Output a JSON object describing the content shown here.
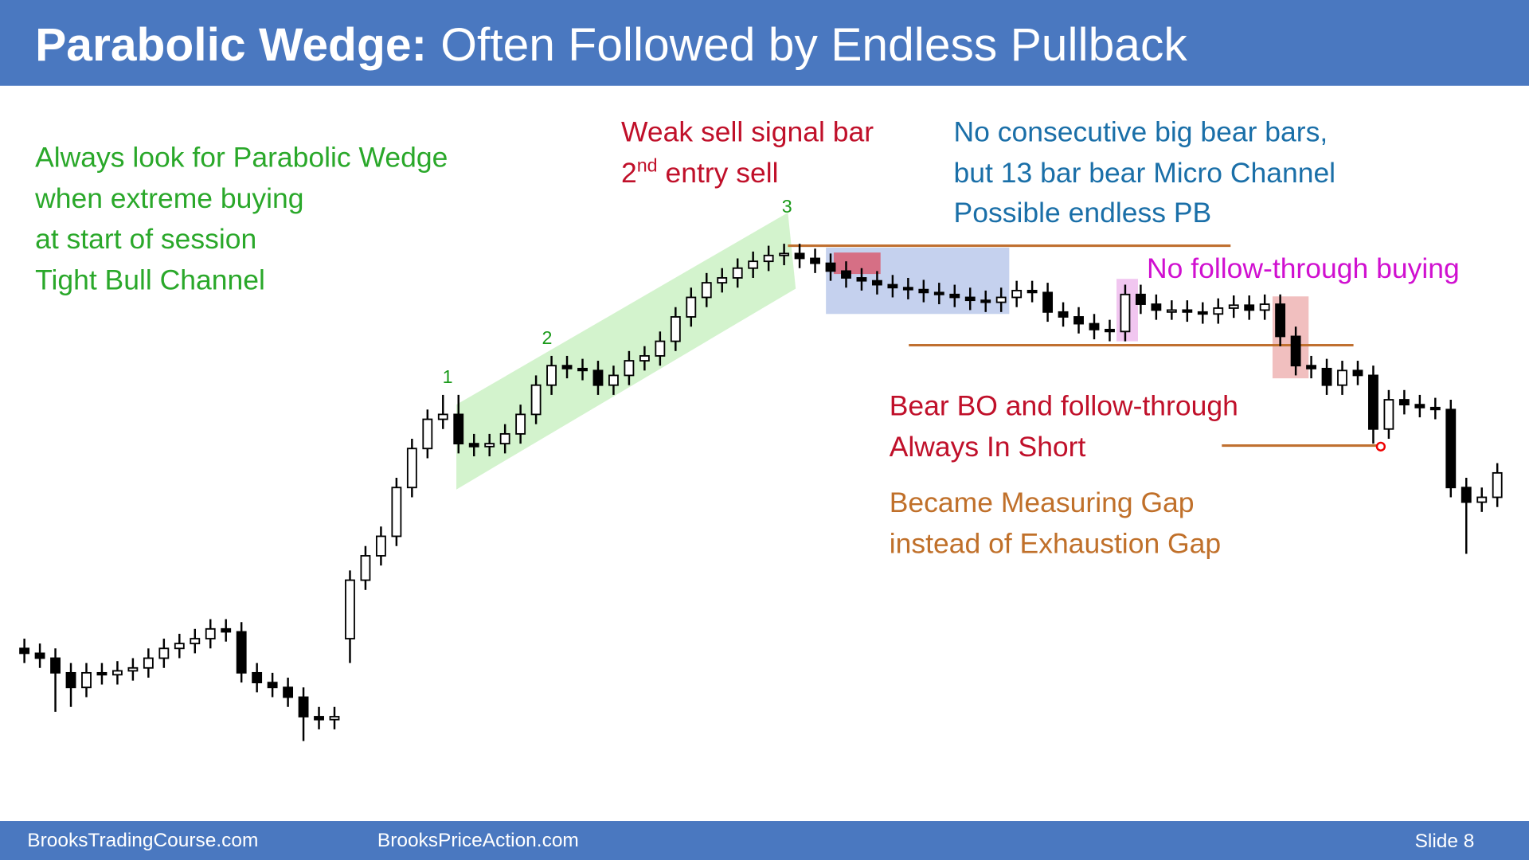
{
  "header": {
    "title_bold": "Parabolic Wedge:",
    "title_rest": "Often Followed by Endless Pullback"
  },
  "footer": {
    "left": "BrooksTradingCourse.com",
    "middle": "BrooksPriceAction.com",
    "slide": "Slide  8"
  },
  "annotations": {
    "green": [
      "Always look for Parabolic Wedge",
      "when extreme buying",
      "at start of session",
      "Tight Bull Channel"
    ],
    "red_top": {
      "line1": "Weak sell signal bar",
      "num": "2",
      "sup": "nd",
      "rest": " entry sell"
    },
    "blue": [
      "No consecutive big bear bars,",
      "but 13 bar bear Micro Channel",
      "Possible endless PB"
    ],
    "magenta": "No follow-through buying",
    "red_mid": [
      "Bear BO and follow-through",
      "Always In Short"
    ],
    "orange": [
      "Became Measuring Gap",
      "instead of Exhaustion Gap"
    ],
    "wedge_points": [
      "1",
      "2",
      "3"
    ]
  },
  "chart_data": {
    "type": "candlestick",
    "ylim": [
      0,
      650
    ],
    "open": [
      135,
      130,
      125,
      110,
      95,
      110,
      108,
      112,
      115,
      125,
      135,
      140,
      145,
      155,
      152,
      110,
      100,
      95,
      85,
      65,
      62,
      145,
      205,
      230,
      250,
      300,
      340,
      370,
      375,
      345,
      342,
      345,
      355,
      375,
      405,
      425,
      422,
      420,
      405,
      415,
      430,
      435,
      450,
      475,
      495,
      510,
      515,
      525,
      532,
      538,
      540,
      535,
      530,
      522,
      515,
      512,
      508,
      505,
      503,
      500,
      498,
      495,
      492,
      490,
      495,
      502,
      500,
      480,
      475,
      468,
      462,
      460,
      498,
      488,
      482,
      482,
      480,
      478,
      484,
      487,
      482,
      488,
      455,
      425,
      422,
      405,
      420,
      415,
      360,
      390,
      385,
      382,
      380,
      300,
      285,
      290
    ],
    "high": [
      145,
      140,
      135,
      120,
      120,
      120,
      122,
      125,
      135,
      145,
      150,
      155,
      165,
      165,
      162,
      120,
      110,
      105,
      95,
      75,
      75,
      215,
      240,
      260,
      310,
      350,
      380,
      395,
      395,
      355,
      355,
      365,
      385,
      415,
      435,
      435,
      432,
      430,
      425,
      440,
      445,
      460,
      485,
      505,
      520,
      525,
      535,
      542,
      548,
      550,
      550,
      545,
      540,
      532,
      525,
      522,
      518,
      515,
      513,
      510,
      508,
      505,
      502,
      505,
      512,
      512,
      510,
      490,
      485,
      478,
      472,
      508,
      508,
      498,
      492,
      492,
      490,
      494,
      497,
      497,
      498,
      498,
      465,
      435,
      432,
      430,
      430,
      425,
      400,
      400,
      395,
      392,
      390,
      310,
      300,
      325
    ],
    "low": [
      120,
      115,
      70,
      75,
      85,
      98,
      98,
      102,
      105,
      115,
      125,
      130,
      135,
      142,
      100,
      90,
      85,
      75,
      40,
      52,
      52,
      120,
      195,
      220,
      240,
      290,
      330,
      360,
      335,
      332,
      332,
      335,
      345,
      365,
      395,
      412,
      410,
      395,
      395,
      405,
      420,
      425,
      440,
      465,
      485,
      500,
      505,
      515,
      522,
      528,
      525,
      520,
      512,
      505,
      502,
      498,
      495,
      493,
      490,
      488,
      485,
      482,
      480,
      480,
      485,
      490,
      470,
      465,
      458,
      452,
      450,
      450,
      478,
      472,
      472,
      470,
      468,
      468,
      474,
      472,
      472,
      445,
      415,
      412,
      395,
      395,
      405,
      345,
      350,
      375,
      372,
      370,
      290,
      232,
      275,
      280
    ],
    "close": [
      130,
      125,
      110,
      95,
      110,
      108,
      112,
      115,
      125,
      135,
      140,
      145,
      155,
      152,
      110,
      100,
      95,
      85,
      65,
      62,
      65,
      205,
      230,
      250,
      300,
      340,
      370,
      375,
      345,
      342,
      345,
      355,
      375,
      405,
      425,
      422,
      420,
      405,
      415,
      430,
      435,
      450,
      475,
      495,
      510,
      515,
      525,
      532,
      538,
      540,
      535,
      530,
      522,
      515,
      512,
      508,
      505,
      503,
      500,
      498,
      495,
      492,
      490,
      495,
      502,
      500,
      480,
      475,
      468,
      462,
      460,
      498,
      488,
      482,
      482,
      480,
      478,
      484,
      487,
      482,
      488,
      455,
      425,
      422,
      405,
      420,
      415,
      360,
      390,
      385,
      382,
      380,
      300,
      285,
      290,
      315
    ]
  }
}
